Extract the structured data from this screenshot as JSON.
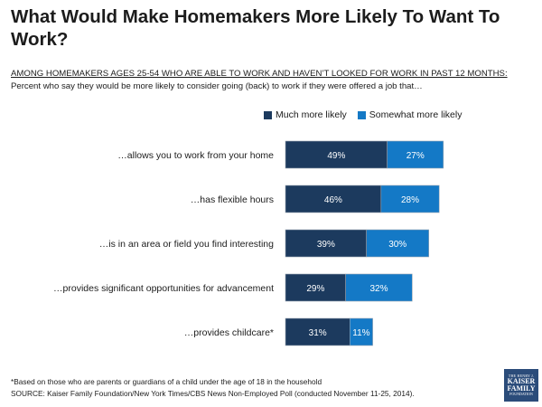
{
  "header": {
    "title": "What Would Make Homemakers More Likely To Want To Work?",
    "subtitle": "AMONG HOMEMAKERS AGES 25-54 WHO ARE ABLE TO WORK AND HAVEN’T LOOKED FOR WORK IN PAST 12 MONTHS:",
    "description": "Percent who say they would be more likely to consider going (back) to work if they were offered a job that…"
  },
  "legend": {
    "much": "Much more likely",
    "somewhat": "Somewhat more likely"
  },
  "colors": {
    "much": "#1c3a5e",
    "somewhat": "#1479c6"
  },
  "chart_data": {
    "type": "bar",
    "orientation": "horizontal",
    "stacked": true,
    "categories": [
      "…allows you to work from your home",
      "…has flexible hours",
      "…is in an area or field you find interesting",
      "…provides significant opportunities for advancement",
      "…provides childcare*"
    ],
    "series": [
      {
        "name": "Much more likely",
        "values": [
          49,
          46,
          39,
          29,
          31
        ]
      },
      {
        "name": "Somewhat more likely",
        "values": [
          27,
          28,
          30,
          32,
          11
        ]
      }
    ],
    "value_labels": [
      [
        "49%",
        "46%",
        "39%",
        "29%",
        "31%"
      ],
      [
        "27%",
        "28%",
        "30%",
        "32%",
        "11%"
      ]
    ],
    "legend_position": "top"
  },
  "footer": {
    "footnote": "*Based on those who are parents or guardians of a child under the age of 18 in the household",
    "source": "SOURCE: Kaiser Family Foundation/New York Times/CBS News Non-Employed Poll (conducted November 11-25, 2014).",
    "logo_line1": "THE HENRY J.",
    "logo_line2": "KAISER",
    "logo_line3": "FAMILY",
    "logo_line4": "FOUNDATION"
  }
}
